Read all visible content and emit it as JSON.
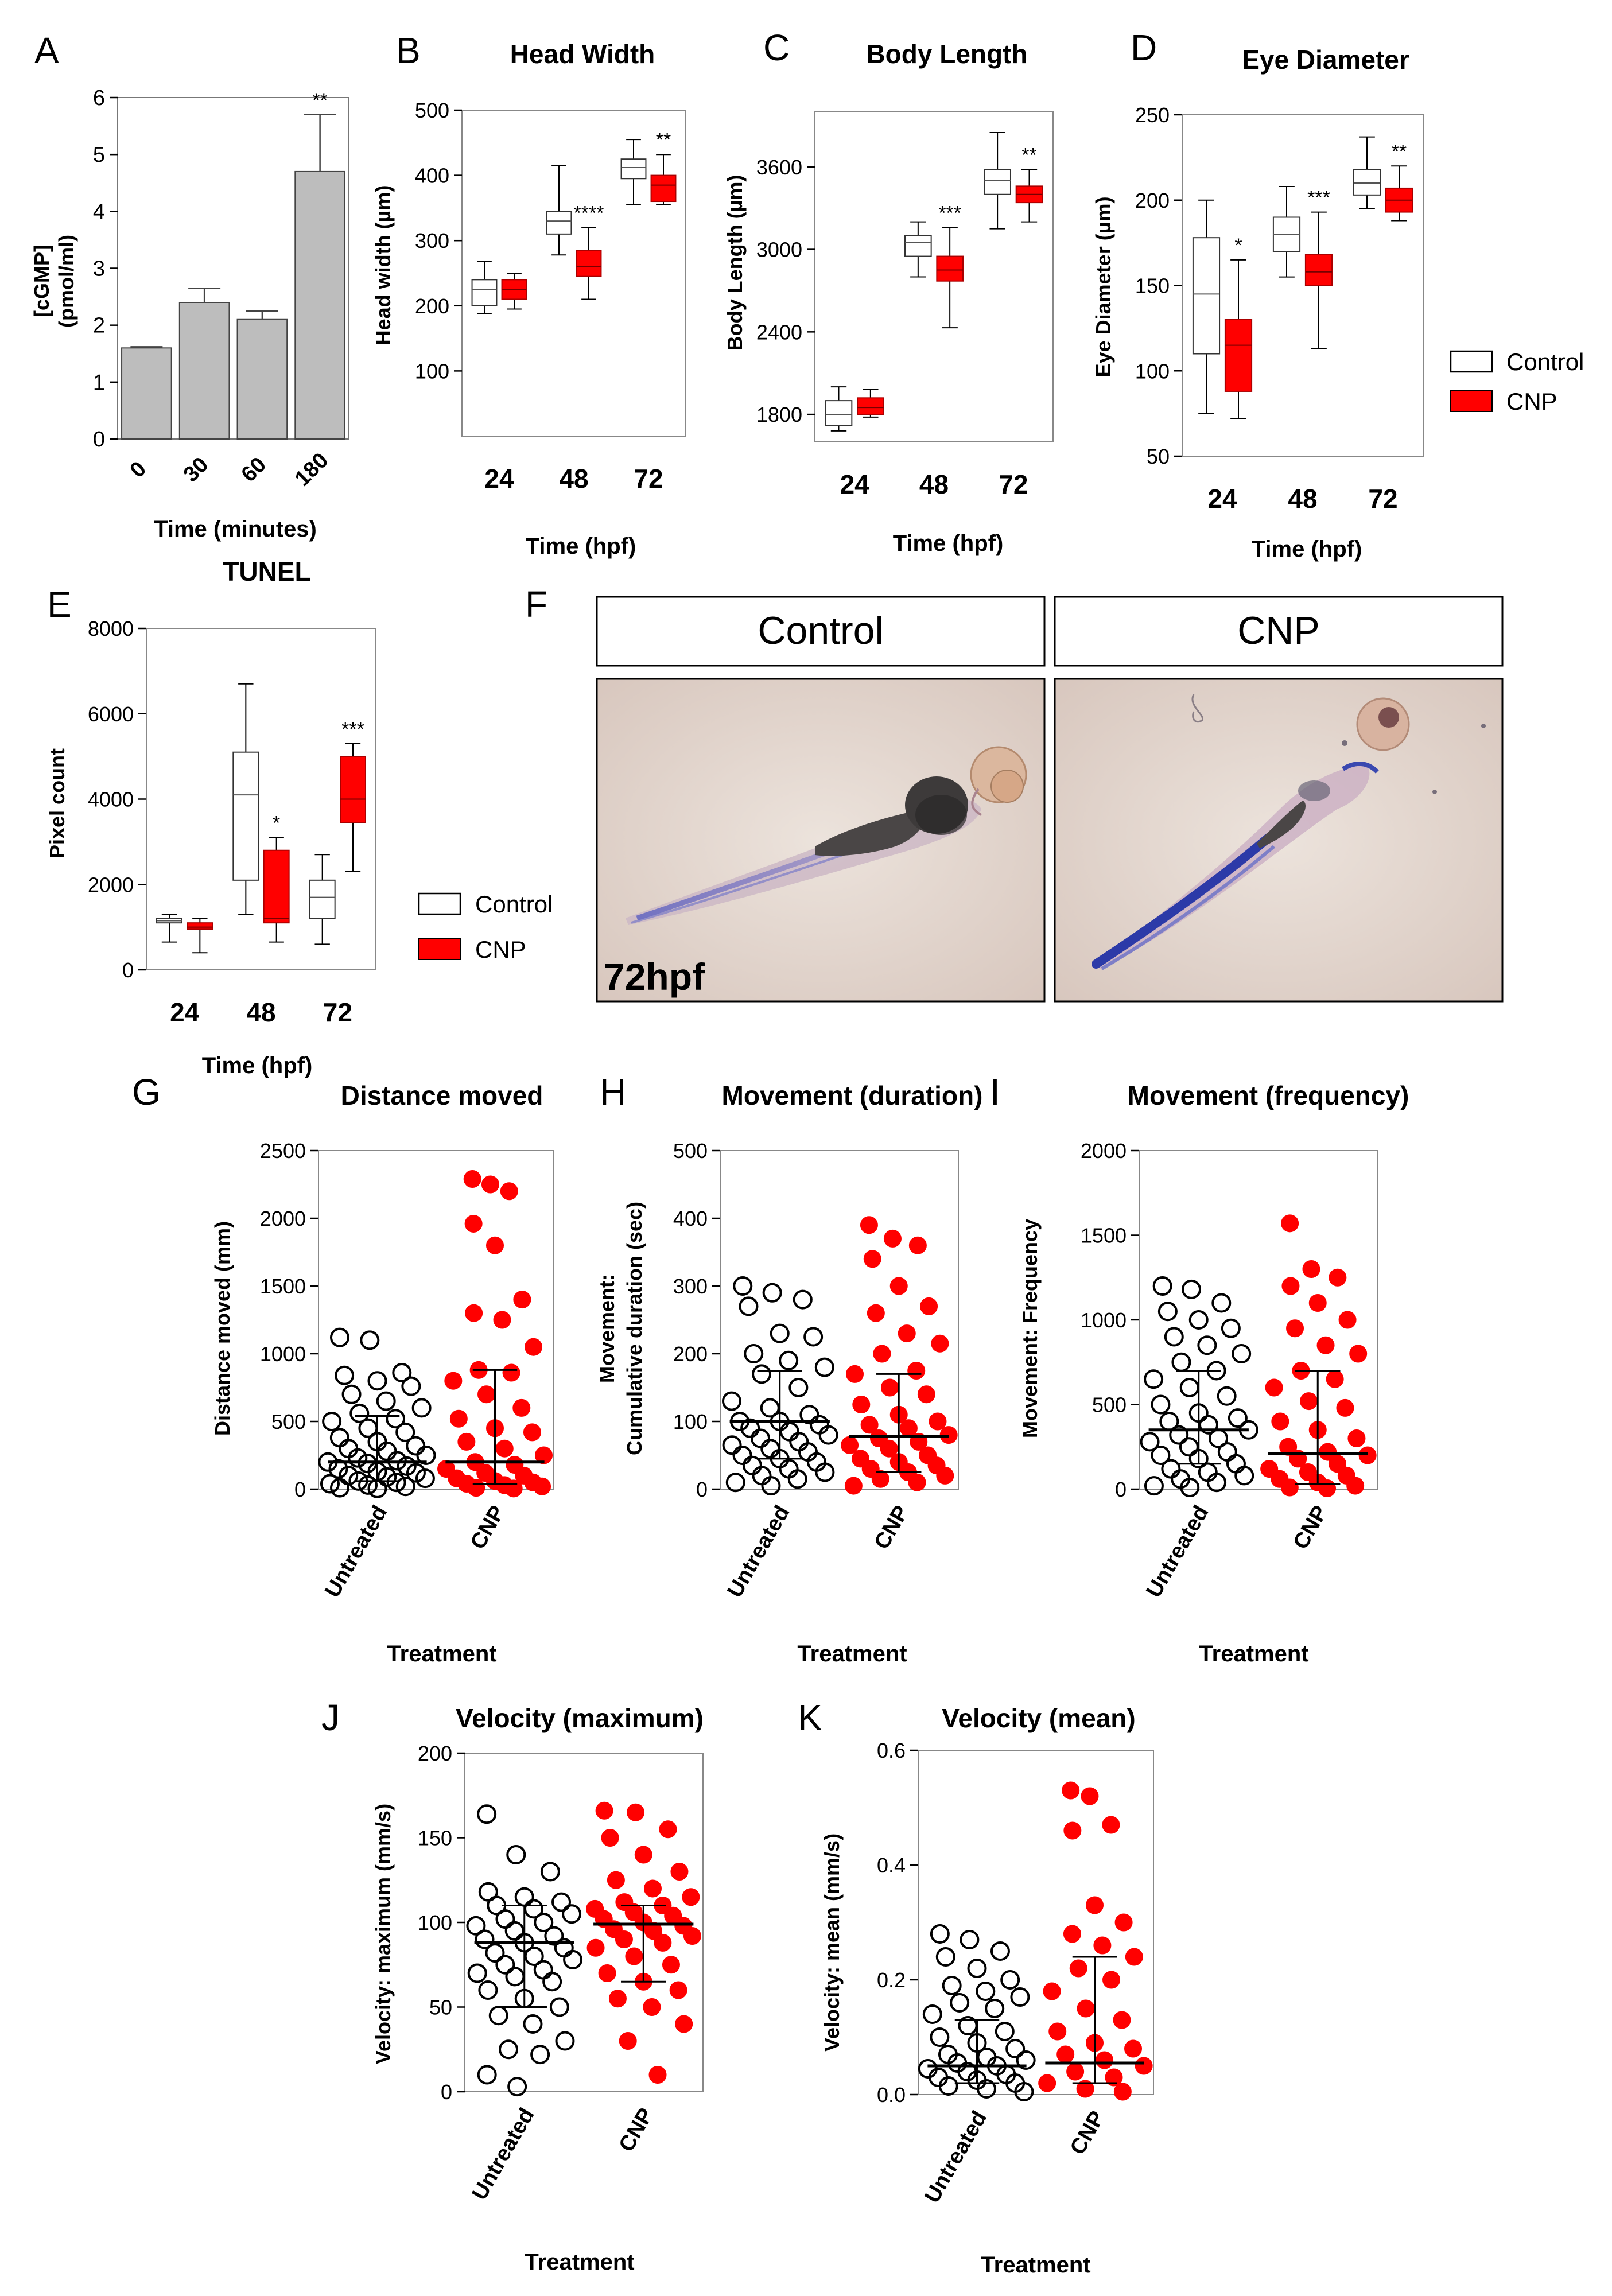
{
  "panels": {
    "A": {
      "letter": "A",
      "chart_data": {
        "type": "bar",
        "title": "",
        "xlabel": "Time (minutes)",
        "ylabel": "[cGMP] (pmol/ml)",
        "ylabel_lines": [
          "[cGMP]",
          "(pmol/ml)"
        ],
        "categories": [
          "0",
          "30",
          "60",
          "180"
        ],
        "values": [
          1.6,
          2.4,
          2.1,
          4.7
        ],
        "errors": [
          0.02,
          0.25,
          0.15,
          1.0
        ],
        "significance": [
          "",
          "",
          "",
          "**"
        ],
        "ylim": [
          0,
          6
        ],
        "yticks": [
          "0",
          "1",
          "2",
          "3",
          "4",
          "5",
          "6"
        ],
        "bar_color": "#bdbdbd"
      }
    },
    "B": {
      "letter": "B",
      "chart_data": {
        "type": "box",
        "title": "Head Width",
        "xlabel": "Time (hpf)",
        "ylabel": "Head width  (µm)",
        "categories": [
          "24",
          "48",
          "72"
        ],
        "ylim": [
          0,
          500
        ],
        "yticks": [
          "100",
          "200",
          "300",
          "400",
          "500"
        ],
        "series": [
          {
            "name": "Control",
            "boxes": [
              [
                188,
                200,
                225,
                240,
                268
              ],
              [
                278,
                310,
                330,
                345,
                415
              ],
              [
                355,
                395,
                412,
                425,
                455
              ]
            ]
          },
          {
            "name": "CNP",
            "boxes": [
              [
                195,
                210,
                225,
                240,
                250
              ],
              [
                210,
                245,
                260,
                285,
                320
              ],
              [
                355,
                360,
                385,
                400,
                432
              ]
            ]
          }
        ],
        "significance": [
          "",
          "****",
          "**"
        ]
      }
    },
    "C": {
      "letter": "C",
      "chart_data": {
        "type": "box",
        "title": "Body Length",
        "xlabel": "Time (hpf)",
        "ylabel": "Body Length (µm)",
        "categories": [
          "24",
          "48",
          "72"
        ],
        "ylim": [
          1600,
          4000
        ],
        "yticks": [
          "1800",
          "2400",
          "3000",
          "3600"
        ],
        "series": [
          {
            "name": "Control",
            "boxes": [
              [
                1680,
                1720,
                1800,
                1900,
                2000
              ],
              [
                2800,
                2950,
                3050,
                3100,
                3200
              ],
              [
                3150,
                3400,
                3500,
                3580,
                3850
              ]
            ]
          },
          {
            "name": "CNP",
            "boxes": [
              [
                1780,
                1800,
                1850,
                1920,
                1980
              ],
              [
                2430,
                2770,
                2850,
                2950,
                3160
              ],
              [
                3200,
                3340,
                3400,
                3460,
                3580
              ]
            ]
          }
        ],
        "significance": [
          "",
          "***",
          "**"
        ]
      }
    },
    "D": {
      "letter": "D",
      "chart_data": {
        "type": "box",
        "title": "Eye Diameter",
        "xlabel": "Time (hpf)",
        "ylabel": "Eye Diameter (µm)",
        "categories": [
          "24",
          "48",
          "72"
        ],
        "ylim": [
          50,
          250
        ],
        "yticks": [
          "50",
          "100",
          "150",
          "200",
          "250"
        ],
        "series": [
          {
            "name": "Control",
            "boxes": [
              [
                75,
                110,
                145,
                178,
                200
              ],
              [
                155,
                170,
                180,
                190,
                208
              ],
              [
                195,
                203,
                210,
                218,
                237
              ]
            ]
          },
          {
            "name": "CNP",
            "boxes": [
              [
                72,
                88,
                115,
                130,
                165
              ],
              [
                113,
                150,
                158,
                168,
                193
              ],
              [
                188,
                193,
                200,
                207,
                220
              ]
            ]
          }
        ],
        "significance": [
          "*",
          "***",
          "**"
        ]
      }
    },
    "E": {
      "letter": "E",
      "chart_data": {
        "type": "box",
        "title": "TUNEL",
        "xlabel": "Time (hpf)",
        "ylabel": "Pixel count",
        "categories": [
          "24",
          "48",
          "72"
        ],
        "ylim": [
          0,
          8000
        ],
        "yticks": [
          "0",
          "2000",
          "4000",
          "6000",
          "8000"
        ],
        "series": [
          {
            "name": "Control",
            "boxes": [
              [
                650,
                1100,
                1150,
                1200,
                1300
              ],
              [
                1300,
                2100,
                4100,
                5100,
                6700
              ],
              [
                600,
                1200,
                1700,
                2100,
                2700
              ]
            ]
          },
          {
            "name": "CNP",
            "boxes": [
              [
                400,
                950,
                1000,
                1100,
                1200
              ],
              [
                650,
                1100,
                1200,
                2800,
                3100
              ],
              [
                2300,
                3450,
                4000,
                5000,
                5300
              ]
            ]
          }
        ],
        "significance": [
          "",
          "*",
          "***"
        ]
      }
    },
    "G": {
      "letter": "G",
      "chart_data": {
        "type": "scatter",
        "title": "Distance moved",
        "xlabel": "Treatment",
        "ylabel": "Distance moved (mm)",
        "categories": [
          "Untreated",
          "CNP"
        ],
        "ylim": [
          0,
          2500
        ],
        "yticks": [
          "0",
          "500",
          "1000",
          "1500",
          "2000",
          "2500"
        ],
        "series": [
          {
            "name": "Untreated",
            "values": [
              1120,
              1100,
              860,
              840,
              800,
              760,
              700,
              650,
              600,
              560,
              520,
              500,
              450,
              420,
              380,
              350,
              320,
              300,
              280,
              250,
              230,
              210,
              200,
              190,
              170,
              150,
              130,
              120,
              100,
              90,
              80,
              60,
              50,
              40,
              30,
              20,
              10,
              5
            ],
            "median": 200,
            "iqr": [
              60,
              540
            ]
          },
          {
            "name": "CNP",
            "values": [
              2290,
              2250,
              2200,
              1960,
              1800,
              1400,
              1300,
              1250,
              1050,
              880,
              860,
              800,
              700,
              600,
              520,
              450,
              420,
              350,
              300,
              250,
              200,
              180,
              150,
              120,
              100,
              80,
              60,
              50,
              40,
              30,
              20,
              10,
              5
            ],
            "median": 200,
            "iqr": [
              40,
              880
            ]
          }
        ]
      }
    },
    "H": {
      "letter": "H",
      "chart_data": {
        "type": "scatter",
        "title": "Movement (duration)",
        "xlabel": "Treatment",
        "ylabel": "Movement: Cumulative duration (sec)",
        "ylabel_lines": [
          "Movement:",
          "Cumulative duration (sec)"
        ],
        "categories": [
          "Untreated",
          "CNP"
        ],
        "ylim": [
          0,
          500
        ],
        "yticks": [
          "0",
          "100",
          "200",
          "300",
          "400",
          "500"
        ],
        "series": [
          {
            "name": "Untreated",
            "values": [
              300,
              290,
              280,
              270,
              230,
              225,
              200,
              190,
              180,
              170,
              150,
              130,
              120,
              110,
              100,
              100,
              95,
              90,
              85,
              80,
              75,
              70,
              65,
              60,
              55,
              50,
              45,
              40,
              35,
              30,
              25,
              20,
              15,
              10,
              5
            ],
            "median": 100,
            "iqr": [
              45,
              175
            ]
          },
          {
            "name": "CNP",
            "values": [
              390,
              370,
              360,
              340,
              300,
              270,
              260,
              230,
              215,
              200,
              175,
              170,
              150,
              140,
              125,
              110,
              100,
              95,
              90,
              80,
              75,
              70,
              65,
              60,
              50,
              45,
              40,
              35,
              30,
              25,
              20,
              15,
              10,
              5
            ],
            "median": 78,
            "iqr": [
              25,
              170
            ]
          }
        ]
      }
    },
    "I": {
      "letter": "I",
      "chart_data": {
        "type": "scatter",
        "title": "Movement (frequency)",
        "xlabel": "Treatment",
        "ylabel": "Movement: Frequency",
        "categories": [
          "Untreated",
          "CNP"
        ],
        "ylim": [
          0,
          2000
        ],
        "yticks": [
          "0",
          "500",
          "1000",
          "1500",
          "2000"
        ],
        "series": [
          {
            "name": "Untreated",
            "values": [
              1200,
              1180,
              1100,
              1050,
              1000,
              950,
              900,
              850,
              800,
              750,
              700,
              650,
              600,
              550,
              500,
              450,
              420,
              400,
              380,
              350,
              320,
              300,
              280,
              250,
              220,
              200,
              180,
              150,
              120,
              100,
              80,
              60,
              40,
              20,
              10
            ],
            "median": 350,
            "iqr": [
              150,
              700
            ]
          },
          {
            "name": "CNP",
            "values": [
              1570,
              1300,
              1250,
              1200,
              1100,
              1000,
              950,
              850,
              800,
              700,
              650,
              600,
              520,
              480,
              400,
              350,
              300,
              250,
              220,
              200,
              180,
              150,
              120,
              100,
              80,
              60,
              40,
              20,
              10,
              5
            ],
            "median": 210,
            "iqr": [
              30,
              700
            ]
          }
        ]
      }
    },
    "J": {
      "letter": "J",
      "chart_data": {
        "type": "scatter",
        "title": "Velocity (maximum)",
        "xlabel": "Treatment",
        "ylabel": "Velocity: maximum (mm/s)",
        "categories": [
          "Untreated",
          "CNP"
        ],
        "ylim": [
          0,
          200
        ],
        "yticks": [
          "0",
          "50",
          "100",
          "150",
          "200"
        ],
        "series": [
          {
            "name": "Untreated",
            "values": [
              164,
              140,
              130,
              118,
              115,
              112,
              110,
              108,
              105,
              102,
              100,
              98,
              95,
              92,
              90,
              88,
              85,
              82,
              80,
              78,
              75,
              72,
              70,
              68,
              65,
              60,
              55,
              50,
              45,
              40,
              30,
              25,
              22,
              10,
              3
            ],
            "median": 88,
            "iqr": [
              50,
              110
            ]
          },
          {
            "name": "CNP",
            "values": [
              166,
              165,
              155,
              150,
              140,
              130,
              125,
              120,
              115,
              112,
              110,
              108,
              106,
              104,
              102,
              100,
              98,
              96,
              95,
              92,
              90,
              88,
              85,
              80,
              75,
              70,
              65,
              60,
              55,
              50,
              40,
              30,
              10
            ],
            "median": 99,
            "iqr": [
              65,
              110
            ]
          }
        ]
      }
    },
    "K": {
      "letter": "K",
      "chart_data": {
        "type": "scatter",
        "title": "Velocity (mean)",
        "xlabel": "Treatment",
        "ylabel": "Velocity: mean (mm/s)",
        "categories": [
          "Untreated",
          "CNP"
        ],
        "ylim": [
          0,
          0.6
        ],
        "yticks": [
          "0.0",
          "0.2",
          "0.4",
          "0.6"
        ],
        "series": [
          {
            "name": "Untreated",
            "values": [
              0.28,
              0.27,
              0.25,
              0.24,
              0.22,
              0.2,
              0.19,
              0.18,
              0.17,
              0.16,
              0.15,
              0.14,
              0.12,
              0.11,
              0.1,
              0.09,
              0.08,
              0.07,
              0.065,
              0.06,
              0.055,
              0.05,
              0.045,
              0.04,
              0.035,
              0.03,
              0.025,
              0.02,
              0.015,
              0.01,
              0.005
            ],
            "median": 0.05,
            "iqr": [
              0.02,
              0.13
            ]
          },
          {
            "name": "CNP",
            "values": [
              0.53,
              0.52,
              0.47,
              0.46,
              0.33,
              0.3,
              0.28,
              0.26,
              0.24,
              0.22,
              0.2,
              0.18,
              0.15,
              0.13,
              0.11,
              0.09,
              0.08,
              0.07,
              0.06,
              0.05,
              0.04,
              0.03,
              0.02,
              0.01,
              0.005
            ],
            "median": 0.055,
            "iqr": [
              0.02,
              0.24
            ]
          }
        ]
      }
    }
  },
  "legend": {
    "control": "Control",
    "cnp": "CNP"
  },
  "photo": {
    "letter": "F",
    "left_label": "Control",
    "right_label": "CNP",
    "stage_label": "72hpf"
  },
  "colors": {
    "red": "#ff0000",
    "gray_bar": "#bdbdbd",
    "photo_background": "#e3d6cf",
    "stain": "#3b3fa0"
  }
}
